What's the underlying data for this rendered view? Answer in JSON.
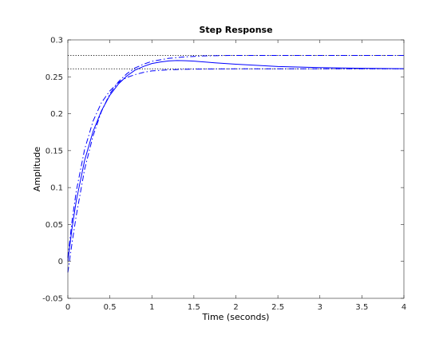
{
  "chart_data": {
    "type": "line",
    "title": "Step Response",
    "xlabel": "Time (seconds)",
    "ylabel": "Amplitude",
    "xlim": [
      0,
      4
    ],
    "ylim": [
      -0.05,
      0.3
    ],
    "xticks": [
      0,
      0.5,
      1,
      1.5,
      2,
      2.5,
      3,
      3.5,
      4
    ],
    "xtick_labels": [
      "0",
      "0.5",
      "1",
      "1.5",
      "2",
      "2.5",
      "3",
      "3.5",
      "4"
    ],
    "yticks": [
      -0.05,
      0,
      0.05,
      0.1,
      0.15,
      0.2,
      0.25,
      0.3
    ],
    "ytick_labels": [
      "-0.05",
      "0",
      "0.05",
      "0.1",
      "0.15",
      "0.2",
      "0.25",
      "0.3"
    ],
    "grid": false,
    "legend": "none",
    "colors": {
      "series": "#0000ff",
      "reference": "#000000",
      "axes": "#262626"
    },
    "series": [
      {
        "style": "solid",
        "x": [
          0,
          0.05,
          0.1,
          0.2,
          0.3,
          0.4,
          0.5,
          0.6,
          0.7,
          0.8,
          0.9,
          1.0,
          1.1,
          1.2,
          1.3,
          1.4,
          1.5,
          1.75,
          2.0,
          2.5,
          3.0,
          3.5,
          4.0
        ],
        "y": [
          0,
          0.045,
          0.082,
          0.137,
          0.176,
          0.204,
          0.225,
          0.24,
          0.251,
          0.259,
          0.264,
          0.268,
          0.27,
          0.2715,
          0.272,
          0.2718,
          0.2712,
          0.269,
          0.267,
          0.264,
          0.2625,
          0.2615,
          0.261
        ]
      },
      {
        "style": "dash-dot",
        "x": [
          0,
          0.05,
          0.1,
          0.2,
          0.3,
          0.4,
          0.5,
          0.6,
          0.7,
          0.8,
          0.9,
          1.0,
          1.2,
          1.4,
          1.6,
          1.8,
          2.0,
          2.5,
          3.0,
          3.5,
          4.0
        ],
        "y": [
          -0.015,
          0.025,
          0.062,
          0.125,
          0.17,
          0.203,
          0.227,
          0.243,
          0.254,
          0.262,
          0.267,
          0.271,
          0.275,
          0.277,
          0.2782,
          0.2787,
          0.279,
          0.279,
          0.279,
          0.279,
          0.279
        ]
      },
      {
        "style": "dash-dot",
        "x": [
          0,
          0.05,
          0.1,
          0.2,
          0.3,
          0.4,
          0.5,
          0.6,
          0.7,
          0.8,
          0.9,
          1.0,
          1.2,
          1.4,
          1.6,
          1.8,
          2.0,
          2.5,
          3.0,
          3.5,
          4.0
        ],
        "y": [
          0.005,
          0.055,
          0.095,
          0.152,
          0.19,
          0.215,
          0.231,
          0.242,
          0.249,
          0.253,
          0.256,
          0.258,
          0.2595,
          0.2602,
          0.2605,
          0.2607,
          0.2608,
          0.2608,
          0.2608,
          0.2608,
          0.2608
        ]
      }
    ],
    "reference_lines": [
      {
        "style": "dotted",
        "y": 0.279,
        "x_from": 0,
        "x_to": 4
      },
      {
        "style": "dotted",
        "y": 0.2608,
        "x_from": 0,
        "x_to": 4
      }
    ]
  }
}
